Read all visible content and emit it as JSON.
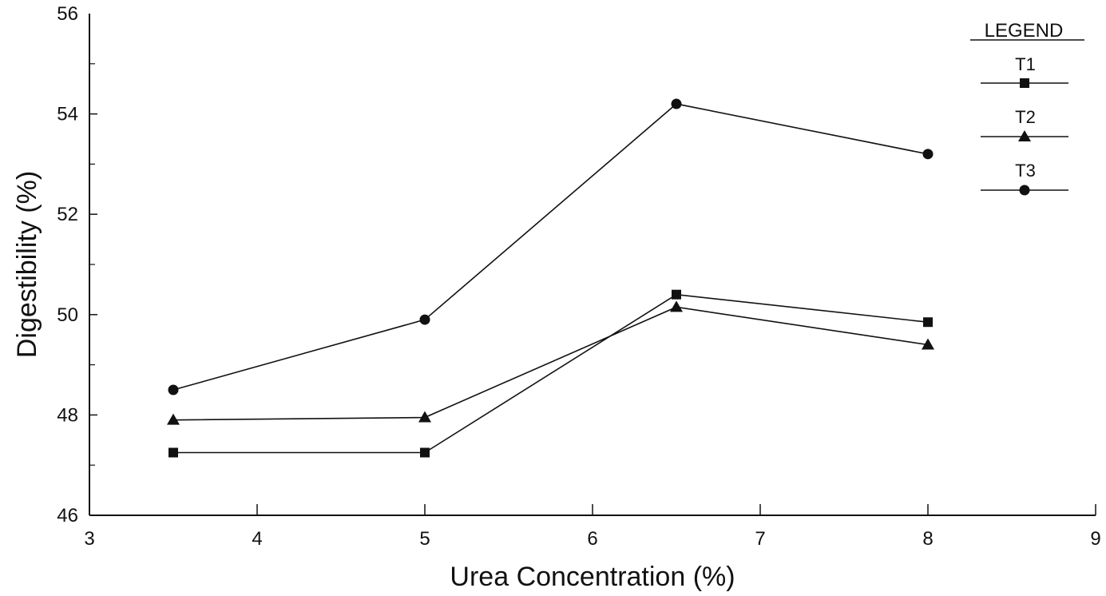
{
  "chart_data": {
    "type": "line",
    "xlabel": "Urea Concentration (%)",
    "ylabel": "Digestibility (%)",
    "xlim": [
      3,
      9
    ],
    "ylim": [
      46,
      56
    ],
    "xticks": [
      "3",
      "4",
      "5",
      "6",
      "7",
      "8",
      "9"
    ],
    "yticks": [
      "46",
      "48",
      "50",
      "52",
      "54",
      "56"
    ],
    "grid": false,
    "legend": {
      "title": "LEGEND",
      "placement": "top-right",
      "entries": [
        "T1",
        "T2",
        "T3"
      ]
    },
    "x": [
      3.5,
      5,
      6.5,
      8
    ],
    "series": [
      {
        "name": "T1",
        "marker": "square",
        "values": [
          47.25,
          47.25,
          50.4,
          49.85
        ]
      },
      {
        "name": "T2",
        "marker": "triangle",
        "values": [
          47.9,
          47.95,
          50.15,
          49.4
        ]
      },
      {
        "name": "T3",
        "marker": "circle",
        "values": [
          48.5,
          49.9,
          54.2,
          53.2
        ]
      }
    ]
  },
  "colors": {
    "ink": "#111111",
    "background": "#ffffff"
  }
}
